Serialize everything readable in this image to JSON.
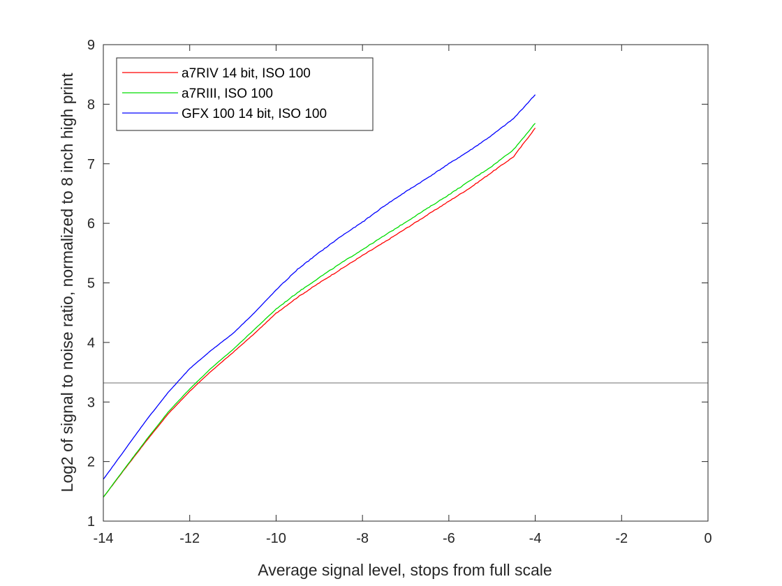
{
  "chart_data": {
    "type": "line",
    "xlabel": "Average signal level, stops from full scale",
    "ylabel": "Log2 of signal to noise ratio, normalized to 8 inch high print",
    "xlim": [
      -14,
      0
    ],
    "ylim": [
      1,
      9
    ],
    "xticks": [
      "-14",
      "-12",
      "-10",
      "-8",
      "-6",
      "-4",
      "-2",
      "0"
    ],
    "yticks": [
      "1",
      "2",
      "3",
      "4",
      "5",
      "6",
      "7",
      "8",
      "9"
    ],
    "grid": false,
    "box": true,
    "legend_position": "top-left",
    "reference_line": {
      "y": 3.32,
      "color": "#7f7f7f"
    },
    "series": [
      {
        "name": "a7RIV 14 bit, ISO 100",
        "color": "#ff0000",
        "x": [
          -14.0,
          -13.5,
          -13.0,
          -12.5,
          -12.0,
          -11.5,
          -11.0,
          -10.5,
          -10.0,
          -9.5,
          -9.0,
          -8.5,
          -8.0,
          -7.5,
          -7.0,
          -6.5,
          -6.0,
          -5.5,
          -5.0,
          -4.5,
          -4.0
        ],
        "y": [
          1.4,
          1.88,
          2.35,
          2.8,
          3.18,
          3.52,
          3.83,
          4.15,
          4.49,
          4.76,
          5.0,
          5.23,
          5.46,
          5.68,
          5.91,
          6.14,
          6.37,
          6.6,
          6.86,
          7.12,
          7.6
        ]
      },
      {
        "name": "a7RIII, ISO 100",
        "color": "#00dd00",
        "x": [
          -14.0,
          -13.5,
          -13.0,
          -12.5,
          -12.0,
          -11.5,
          -11.0,
          -10.5,
          -10.0,
          -9.5,
          -9.0,
          -8.5,
          -8.0,
          -7.5,
          -7.0,
          -6.5,
          -6.0,
          -5.5,
          -5.0,
          -4.5,
          -4.0
        ],
        "y": [
          1.4,
          1.89,
          2.37,
          2.83,
          3.22,
          3.57,
          3.88,
          4.22,
          4.56,
          4.84,
          5.09,
          5.33,
          5.56,
          5.79,
          6.02,
          6.25,
          6.48,
          6.72,
          6.96,
          7.24,
          7.68
        ]
      },
      {
        "name": "GFX 100 14 bit, ISO 100",
        "color": "#0000ff",
        "x": [
          -14.0,
          -13.5,
          -13.0,
          -12.5,
          -12.0,
          -11.5,
          -11.0,
          -10.5,
          -10.0,
          -9.5,
          -9.0,
          -8.5,
          -8.0,
          -7.5,
          -7.0,
          -6.5,
          -6.0,
          -5.5,
          -5.0,
          -4.5,
          -4.0
        ],
        "y": [
          1.7,
          2.2,
          2.7,
          3.16,
          3.56,
          3.87,
          4.15,
          4.5,
          4.88,
          5.23,
          5.51,
          5.78,
          6.02,
          6.29,
          6.53,
          6.76,
          7.0,
          7.23,
          7.48,
          7.76,
          8.16
        ]
      }
    ]
  }
}
